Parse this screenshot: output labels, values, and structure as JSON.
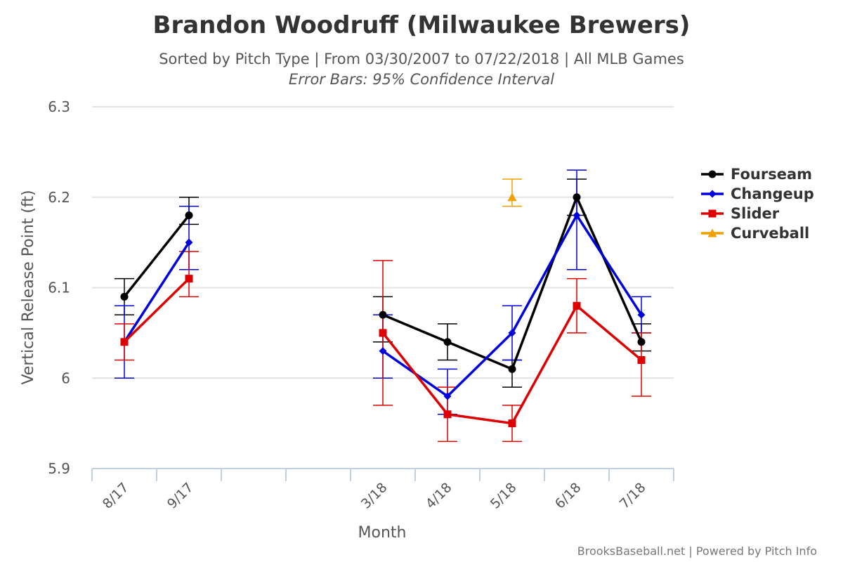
{
  "chart_data": {
    "type": "line",
    "title": "Brandon Woodruff (Milwaukee Brewers)",
    "subtitle": "Sorted by Pitch Type | From 03/30/2007 to 07/22/2018 | All MLB Games",
    "subtitle2": "Error Bars: 95% Confidence Interval",
    "xlabel": "Month",
    "ylabel": "Vertical Release Point (ft)",
    "categories": [
      "8/17",
      "9/17",
      "",
      "",
      "3/18",
      "4/18",
      "5/18",
      "6/18",
      "7/18"
    ],
    "ylim": [
      5.9,
      6.3
    ],
    "yticks": [
      5.9,
      6,
      6.1,
      6.2,
      6.3
    ],
    "ytick_labels": [
      "5.9",
      "6",
      "6.1",
      "6.2",
      "6.3"
    ],
    "grid": true,
    "legend_position": "right",
    "series": [
      {
        "name": "Fourseam",
        "color": "#000000",
        "marker": "circle",
        "values": [
          6.09,
          6.18,
          null,
          null,
          6.07,
          6.04,
          6.01,
          6.2,
          6.04
        ],
        "low": [
          6.07,
          6.17,
          null,
          null,
          6.04,
          6.02,
          5.99,
          6.18,
          6.03
        ],
        "high": [
          6.11,
          6.2,
          null,
          null,
          6.09,
          6.06,
          6.02,
          6.22,
          6.06
        ]
      },
      {
        "name": "Changeup",
        "color": "#0000dd",
        "marker": "diamond",
        "values": [
          6.04,
          6.15,
          null,
          null,
          6.03,
          5.98,
          6.05,
          6.18,
          6.07
        ],
        "low": [
          6.0,
          6.12,
          null,
          null,
          6.0,
          5.96,
          6.02,
          6.12,
          6.05
        ],
        "high": [
          6.08,
          6.19,
          null,
          null,
          6.07,
          6.01,
          6.08,
          6.23,
          6.09
        ]
      },
      {
        "name": "Slider",
        "color": "#dd0000",
        "marker": "square",
        "values": [
          6.04,
          6.11,
          null,
          null,
          6.05,
          5.96,
          5.95,
          6.08,
          6.02
        ],
        "low": [
          6.02,
          6.09,
          null,
          null,
          5.97,
          5.93,
          5.93,
          6.05,
          5.98
        ],
        "high": [
          6.06,
          6.14,
          null,
          null,
          6.13,
          5.99,
          5.97,
          6.11,
          6.05
        ]
      },
      {
        "name": "Curveball",
        "color": "#f0a000",
        "marker": "triangle",
        "values": [
          null,
          null,
          null,
          null,
          null,
          null,
          6.2,
          null,
          null
        ],
        "low": [
          null,
          null,
          null,
          null,
          null,
          null,
          6.19,
          null,
          null
        ],
        "high": [
          null,
          null,
          null,
          null,
          null,
          null,
          6.22,
          null,
          null
        ]
      }
    ]
  },
  "credits": "BrooksBaseball.net | Powered by Pitch Info"
}
